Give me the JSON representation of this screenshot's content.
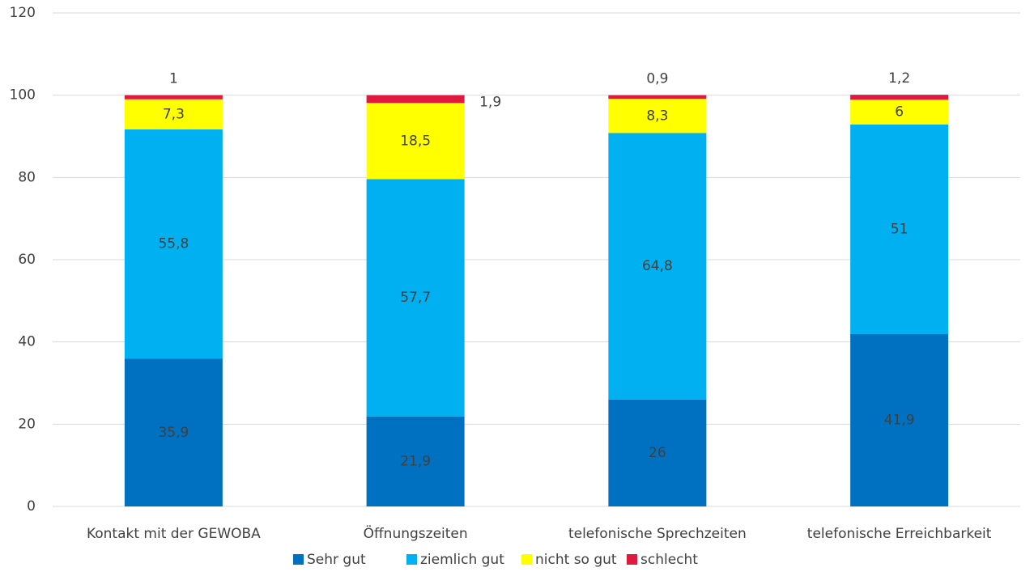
{
  "chart_data": {
    "type": "stacked_bar",
    "categories": [
      "Kontakt mit der GEWOBA",
      "Öffnungszeiten",
      "telefonische Sprechzeiten",
      "telefonische Erreichbarkeit"
    ],
    "series": [
      {
        "name": "Sehr gut",
        "color": "#0070c0",
        "values": [
          35.9,
          21.9,
          26,
          41.9
        ],
        "value_labels": [
          "35,9",
          "21,9",
          "26",
          "41,9"
        ]
      },
      {
        "name": "ziemlich gut",
        "color": "#00b0f0",
        "values": [
          55.8,
          57.7,
          64.8,
          51
        ],
        "value_labels": [
          "55,8",
          "57,7",
          "64,8",
          "51"
        ]
      },
      {
        "name": "nicht so gut",
        "color": "#ffff00",
        "values": [
          7.3,
          18.5,
          8.3,
          6
        ],
        "value_labels": [
          "7,3",
          "18,5",
          "8,3",
          "6"
        ]
      },
      {
        "name": "schlecht",
        "color": "#e0193f",
        "values": [
          1,
          1.9,
          0.9,
          1.2
        ],
        "value_labels": [
          "1",
          "1,9",
          "0,9",
          "1,2"
        ]
      }
    ],
    "ylim": [
      0,
      120
    ],
    "yticks": [
      0,
      20,
      40,
      60,
      80,
      100,
      120
    ],
    "grid": true,
    "legend": "bottom"
  }
}
